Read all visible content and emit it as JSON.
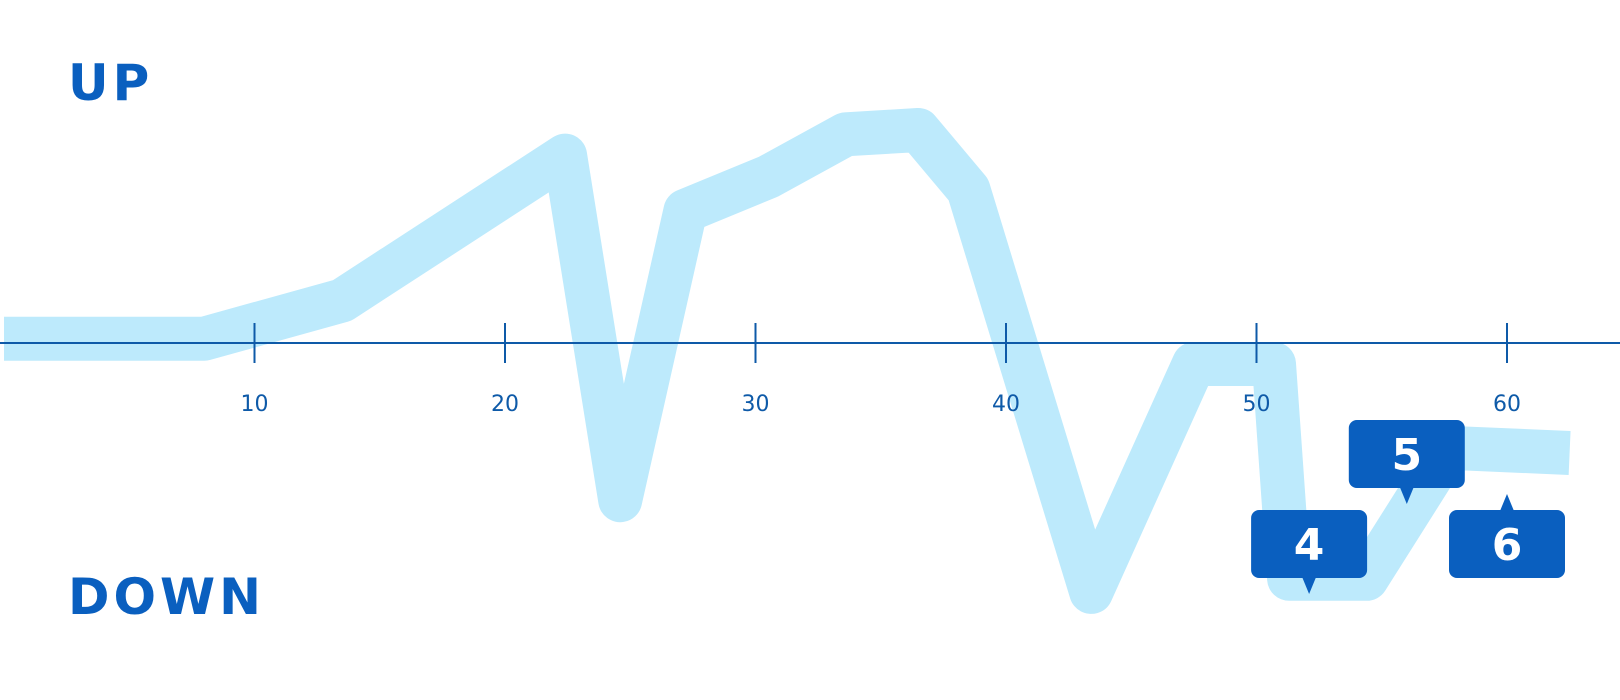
{
  "chart_data": {
    "type": "line",
    "top_label": "UP",
    "bottom_label": "DOWN",
    "x_ticks": [
      10,
      20,
      30,
      40,
      50,
      60
    ],
    "xlim": [
      0,
      62.5
    ],
    "ylim": [
      -1,
      1
    ],
    "grid": false,
    "series": [
      {
        "values": [
          {
            "x": 0,
            "y": 0.02
          },
          {
            "x": 8,
            "y": 0.02
          },
          {
            "x": 13.5,
            "y": 0.2
          },
          {
            "x": 22.4,
            "y": 0.88
          },
          {
            "x": 24.6,
            "y": -0.6
          },
          {
            "x": 27.2,
            "y": 0.62
          },
          {
            "x": 30.5,
            "y": 0.78
          },
          {
            "x": 33.6,
            "y": 0.98
          },
          {
            "x": 36.5,
            "y": 1.0
          },
          {
            "x": 38.5,
            "y": 0.72
          },
          {
            "x": 43.4,
            "y": -0.95
          },
          {
            "x": 47.5,
            "y": -0.08
          },
          {
            "x": 50.7,
            "y": -0.08
          },
          {
            "x": 51.3,
            "y": -0.9
          },
          {
            "x": 54.4,
            "y": -0.9
          },
          {
            "x": 57.7,
            "y": -0.4
          },
          {
            "x": 62.5,
            "y": -0.42
          }
        ]
      }
    ],
    "annotations": [
      {
        "label": "4",
        "x": 52.1,
        "y": -0.9
      },
      {
        "label": "5",
        "x": 56.0,
        "y": -0.65
      },
      {
        "label": "6",
        "x": 60.0,
        "y": -0.55
      }
    ]
  },
  "colors": {
    "path": "#bdeafc",
    "axis": "#0e5aa8",
    "label": "#0a5fbf",
    "bubble": "#0a5fbf"
  }
}
